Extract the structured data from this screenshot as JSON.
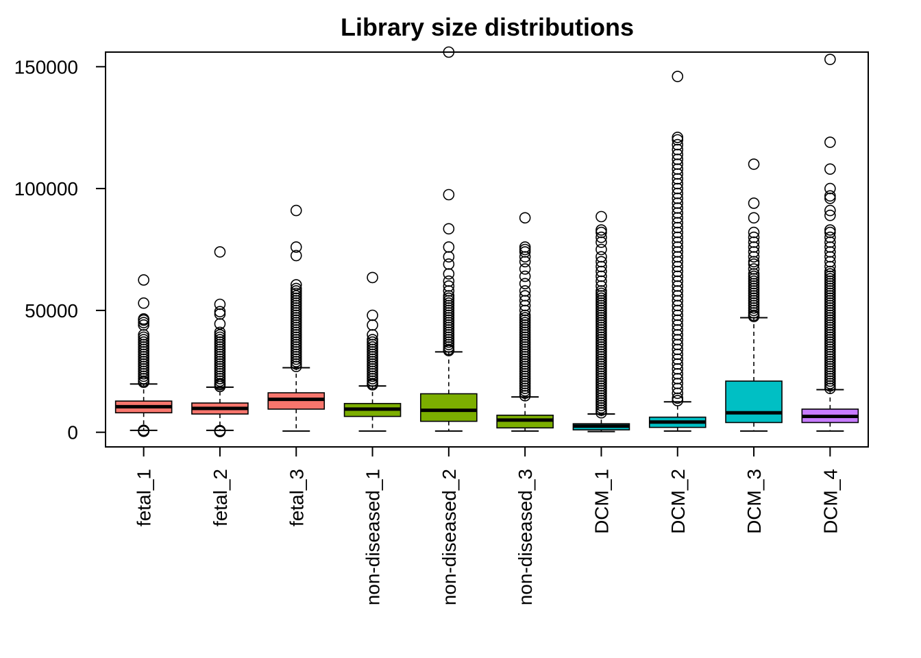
{
  "chart_data": {
    "type": "boxplot",
    "title": "Library size distributions",
    "xlabel": "",
    "ylabel": "",
    "ylim": [
      -6000,
      156000
    ],
    "yticks": [
      0,
      50000,
      100000,
      150000
    ],
    "ytick_labels": [
      "0",
      "50000",
      "100000",
      "150000"
    ],
    "grid": false,
    "legend": "none",
    "categories": [
      "fetal_1",
      "fetal_2",
      "fetal_3",
      "non-diseased_1",
      "non-diseased_2",
      "non-diseased_3",
      "DCM_1",
      "DCM_2",
      "DCM_3",
      "DCM_4"
    ],
    "colors": [
      "#F8766D",
      "#F8766D",
      "#F8766D",
      "#7CAE00",
      "#7CAE00",
      "#7CAE00",
      "#00BFC4",
      "#00BFC4",
      "#00BFC4",
      "#C77CFF"
    ],
    "boxes": [
      {
        "name": "fetal_1",
        "whisker_low": 800,
        "q1": 8000,
        "median": 10500,
        "q3": 12800,
        "whisker_high": 19800,
        "outliers": [
          400,
          500,
          600,
          700,
          800,
          20500,
          21000,
          22000,
          23000,
          24000,
          25000,
          26000,
          27000,
          28000,
          29000,
          30000,
          31000,
          32000,
          33000,
          34000,
          35000,
          36000,
          37000,
          38000,
          39000,
          40000,
          44000,
          45000,
          46000,
          46500,
          53000,
          62500
        ]
      },
      {
        "name": "fetal_2",
        "whisker_low": 800,
        "q1": 7500,
        "median": 9800,
        "q3": 12000,
        "whisker_high": 18500,
        "outliers": [
          300,
          500,
          600,
          700,
          18800,
          19500,
          20000,
          21000,
          22000,
          23000,
          24000,
          25000,
          26000,
          27000,
          28000,
          29000,
          30000,
          31000,
          32000,
          33000,
          34000,
          35000,
          36000,
          37000,
          38000,
          39000,
          40000,
          41000,
          44500,
          48500,
          49500,
          52500,
          74000
        ]
      },
      {
        "name": "fetal_3",
        "whisker_low": 500,
        "q1": 9500,
        "median": 13500,
        "q3": 16200,
        "whisker_high": 26500,
        "outliers": [
          27000,
          28000,
          29000,
          30000,
          31000,
          32000,
          33000,
          34000,
          35000,
          36000,
          37000,
          38000,
          39000,
          40000,
          41000,
          42000,
          43000,
          44000,
          45000,
          46000,
          47000,
          48000,
          49000,
          50000,
          51000,
          52000,
          53000,
          54000,
          55000,
          56000,
          57000,
          58000,
          59000,
          60500,
          72500,
          76000,
          91000
        ]
      },
      {
        "name": "non-diseased_1",
        "whisker_low": 500,
        "q1": 6500,
        "median": 9500,
        "q3": 11800,
        "whisker_high": 19000,
        "outliers": [
          19500,
          20000,
          21000,
          22000,
          23000,
          24000,
          25000,
          26000,
          27000,
          28000,
          29000,
          30000,
          31000,
          32000,
          33000,
          34000,
          35000,
          36000,
          37000,
          38000,
          40000,
          44000,
          48000,
          63500
        ]
      },
      {
        "name": "non-diseased_2",
        "whisker_low": 500,
        "q1": 4500,
        "median": 9000,
        "q3": 15800,
        "whisker_high": 33000,
        "outliers": [
          33500,
          34000,
          35000,
          36000,
          37000,
          38000,
          39000,
          40000,
          41000,
          42000,
          43000,
          44000,
          45000,
          46000,
          47000,
          48000,
          49000,
          50000,
          51000,
          52000,
          53000,
          54000,
          55000,
          56000,
          58000,
          60000,
          62000,
          65000,
          69000,
          72000,
          76000,
          83500,
          97500,
          156000
        ]
      },
      {
        "name": "non-diseased_3",
        "whisker_low": 500,
        "q1": 1800,
        "median": 5000,
        "q3": 7000,
        "whisker_high": 14500,
        "outliers": [
          15000,
          16000,
          17000,
          18000,
          19000,
          20000,
          21000,
          22000,
          23000,
          24000,
          25000,
          26000,
          27000,
          28000,
          29000,
          30000,
          31000,
          32000,
          33000,
          34000,
          35000,
          36000,
          37000,
          38000,
          39000,
          40000,
          41000,
          42000,
          43000,
          44000,
          45000,
          46000,
          47000,
          48000,
          50000,
          52000,
          54000,
          56000,
          58000,
          61000,
          64000,
          67000,
          70000,
          72000,
          74000,
          75000,
          76000,
          88000
        ]
      },
      {
        "name": "DCM_1",
        "whisker_low": 300,
        "q1": 1000,
        "median": 2500,
        "q3": 3500,
        "whisker_high": 7500,
        "outliers": [
          8000,
          9000,
          10000,
          11000,
          12000,
          13000,
          14000,
          15000,
          16000,
          17000,
          18000,
          19000,
          20000,
          21000,
          22000,
          23000,
          24000,
          25000,
          26000,
          27000,
          28000,
          29000,
          30000,
          31000,
          32000,
          33000,
          34000,
          35000,
          36000,
          37000,
          38000,
          39000,
          40000,
          41000,
          42000,
          43000,
          44000,
          45000,
          46000,
          47000,
          48000,
          49000,
          50000,
          51000,
          52000,
          53000,
          54000,
          55000,
          56000,
          57000,
          58000,
          60000,
          62000,
          64000,
          66000,
          68000,
          70000,
          72000,
          75000,
          78000,
          80000,
          82000,
          83000,
          88500
        ]
      },
      {
        "name": "DCM_2",
        "whisker_low": 500,
        "q1": 2000,
        "median": 4200,
        "q3": 6200,
        "whisker_high": 12500,
        "outliers": [
          13000,
          14000,
          16000,
          18000,
          20000,
          22000,
          24000,
          26000,
          28000,
          30000,
          32000,
          34000,
          36000,
          38000,
          40000,
          42000,
          44000,
          46000,
          48000,
          50000,
          52000,
          54000,
          56000,
          58000,
          60000,
          62000,
          64000,
          66000,
          68000,
          70000,
          72000,
          74000,
          76000,
          78000,
          80000,
          82000,
          84000,
          86000,
          88000,
          90000,
          92000,
          94000,
          96000,
          98000,
          100000,
          102000,
          104000,
          106000,
          108000,
          110000,
          112000,
          114000,
          116000,
          118000,
          120000,
          121000,
          146000
        ]
      },
      {
        "name": "DCM_3",
        "whisker_low": 500,
        "q1": 4000,
        "median": 8000,
        "q3": 21000,
        "whisker_high": 47000,
        "outliers": [
          47500,
          48000,
          49000,
          50000,
          51000,
          52000,
          53000,
          54000,
          55000,
          56000,
          57000,
          58000,
          59000,
          60000,
          61000,
          62000,
          63000,
          64000,
          65000,
          67000,
          69000,
          70000,
          72000,
          74000,
          76000,
          78000,
          80000,
          82000,
          88000,
          94000,
          110000
        ]
      },
      {
        "name": "DCM_4",
        "whisker_low": 500,
        "q1": 4000,
        "median": 6500,
        "q3": 9500,
        "whisker_high": 17500,
        "outliers": [
          18000,
          19000,
          20000,
          21000,
          22000,
          23000,
          24000,
          25000,
          26000,
          27000,
          28000,
          29000,
          30000,
          31000,
          32000,
          33000,
          34000,
          35000,
          36000,
          37000,
          38000,
          39000,
          40000,
          41000,
          42000,
          43000,
          44000,
          45000,
          46000,
          47000,
          48000,
          49000,
          50000,
          51000,
          52000,
          53000,
          54000,
          55000,
          56000,
          57000,
          58000,
          59000,
          60000,
          61000,
          62000,
          63000,
          64000,
          65000,
          66000,
          68000,
          70000,
          72000,
          74000,
          76000,
          78000,
          80000,
          82000,
          83000,
          89000,
          91000,
          96000,
          97000,
          100000,
          108000,
          119000,
          153000
        ]
      }
    ]
  }
}
